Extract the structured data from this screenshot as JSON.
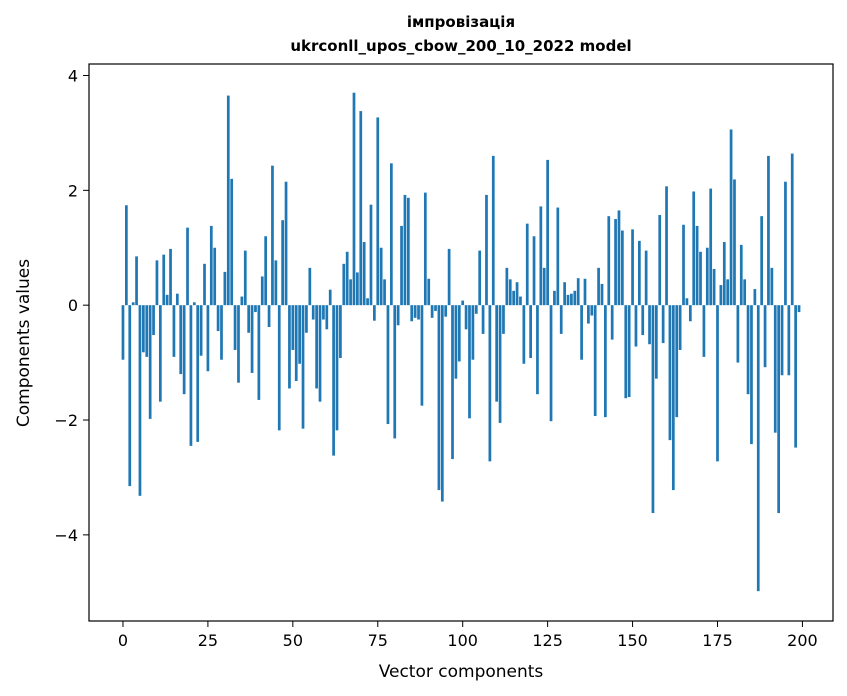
{
  "chart_data": {
    "type": "bar",
    "title_line1": "імпровізація",
    "title_line2": "ukrconll_upos_cbow_200_10_2022 model",
    "xlabel": "Vector components",
    "ylabel": "Components values",
    "xlim": [
      -10,
      209
    ],
    "ylim": [
      -5.5,
      4.2
    ],
    "x_ticks": [
      0,
      25,
      50,
      75,
      100,
      125,
      150,
      175,
      200
    ],
    "y_ticks": [
      -4,
      -2,
      0,
      2,
      4
    ],
    "y_tick_labels": [
      "−4",
      "−2",
      "0",
      "2",
      "4"
    ],
    "bar_color": "#1f77b4",
    "grid": false,
    "x": [
      0,
      1,
      2,
      3,
      4,
      5,
      6,
      7,
      8,
      9,
      10,
      11,
      12,
      13,
      14,
      15,
      16,
      17,
      18,
      19,
      20,
      21,
      22,
      23,
      24,
      25,
      26,
      27,
      28,
      29,
      30,
      31,
      32,
      33,
      34,
      35,
      36,
      37,
      38,
      39,
      40,
      41,
      42,
      43,
      44,
      45,
      46,
      47,
      48,
      49,
      50,
      51,
      52,
      53,
      54,
      55,
      56,
      57,
      58,
      59,
      60,
      61,
      62,
      63,
      64,
      65,
      66,
      67,
      68,
      69,
      70,
      71,
      72,
      73,
      74,
      75,
      76,
      77,
      78,
      79,
      80,
      81,
      82,
      83,
      84,
      85,
      86,
      87,
      88,
      89,
      90,
      91,
      92,
      93,
      94,
      95,
      96,
      97,
      98,
      99,
      100,
      101,
      102,
      103,
      104,
      105,
      106,
      107,
      108,
      109,
      110,
      111,
      112,
      113,
      114,
      115,
      116,
      117,
      118,
      119,
      120,
      121,
      122,
      123,
      124,
      125,
      126,
      127,
      128,
      129,
      130,
      131,
      132,
      133,
      134,
      135,
      136,
      137,
      138,
      139,
      140,
      141,
      142,
      143,
      144,
      145,
      146,
      147,
      148,
      149,
      150,
      151,
      152,
      153,
      154,
      155,
      156,
      157,
      158,
      159,
      160,
      161,
      162,
      163,
      164,
      165,
      166,
      167,
      168,
      169,
      170,
      171,
      172,
      173,
      174,
      175,
      176,
      177,
      178,
      179,
      180,
      181,
      182,
      183,
      184,
      185,
      186,
      187,
      188,
      189,
      190,
      191,
      192,
      193,
      194,
      195,
      196,
      197,
      198,
      199
    ],
    "values": [
      -0.95,
      1.74,
      -3.15,
      0.05,
      0.85,
      -3.32,
      -0.82,
      -0.9,
      -1.98,
      -0.52,
      0.78,
      -1.68,
      0.88,
      0.18,
      0.98,
      -0.9,
      0.2,
      -1.2,
      -1.55,
      1.35,
      -2.45,
      0.05,
      -2.38,
      -0.88,
      0.72,
      -1.15,
      1.38,
      1.0,
      -0.45,
      -0.95,
      0.58,
      3.65,
      2.2,
      -0.78,
      -1.35,
      0.15,
      0.95,
      -0.48,
      -1.18,
      -0.12,
      -1.65,
      0.5,
      1.2,
      -0.38,
      2.43,
      0.78,
      -2.18,
      1.48,
      2.15,
      -1.45,
      -0.78,
      -1.32,
      -1.02,
      -2.15,
      -0.48,
      0.65,
      -0.25,
      -1.45,
      -1.68,
      -0.25,
      -0.42,
      0.27,
      -2.62,
      -2.18,
      -0.92,
      0.72,
      0.93,
      0.45,
      3.7,
      0.57,
      3.38,
      1.1,
      0.12,
      1.75,
      -0.27,
      3.27,
      1.0,
      0.45,
      -2.07,
      2.47,
      -2.32,
      -0.35,
      1.38,
      1.92,
      1.87,
      -0.28,
      -0.22,
      -0.25,
      -1.75,
      1.96,
      0.46,
      -0.22,
      -0.1,
      -3.22,
      -3.42,
      -0.2,
      0.98,
      -2.68,
      -1.28,
      -0.98,
      0.08,
      -0.42,
      -1.97,
      -0.95,
      -0.15,
      0.95,
      -0.5,
      1.92,
      -2.72,
      2.6,
      -1.68,
      -2.05,
      -0.5,
      0.65,
      0.45,
      0.25,
      0.4,
      0.15,
      -1.02,
      1.42,
      -0.92,
      1.2,
      -1.55,
      1.72,
      0.65,
      2.53,
      -2.02,
      0.25,
      1.7,
      -0.5,
      0.4,
      0.18,
      0.2,
      0.25,
      0.47,
      -0.95,
      0.46,
      -0.32,
      -0.18,
      -1.93,
      0.65,
      0.37,
      -1.95,
      1.55,
      -0.6,
      1.5,
      1.65,
      1.3,
      -1.62,
      -1.6,
      1.32,
      -0.72,
      1.12,
      -0.52,
      0.95,
      -0.68,
      -3.62,
      -1.28,
      1.57,
      -0.66,
      2.07,
      -2.35,
      -3.22,
      -1.95,
      -0.78,
      1.4,
      0.12,
      -0.28,
      1.98,
      1.38,
      0.93,
      -0.9,
      1.0,
      2.03,
      0.63,
      -2.72,
      0.35,
      1.1,
      0.45,
      3.06,
      2.19,
      -1.0,
      1.05,
      0.45,
      -1.55,
      -2.42,
      0.28,
      -4.98,
      1.55,
      -1.08,
      2.6,
      0.65,
      -2.22,
      -3.62,
      -1.22,
      2.15,
      -1.22,
      2.64,
      -2.48,
      -0.12
    ]
  }
}
